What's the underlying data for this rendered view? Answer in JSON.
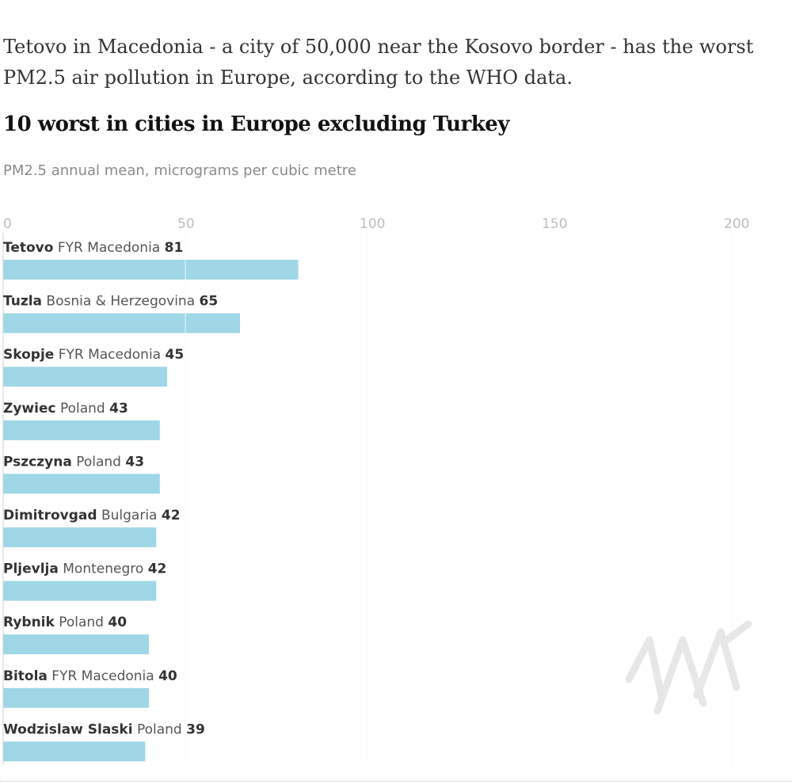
{
  "intro": "Tetovo in Macedonia - a city of 50,000 near the Kosovo border - has the worst PM2.5 air pollution in Europe, according to the WHO data.",
  "chart_data": {
    "type": "bar",
    "orientation": "horizontal",
    "title": "10 worst in cities in Europe excluding Turkey",
    "subtitle": "PM2.5 annual mean, micrograms per cubic metre",
    "xlim": [
      0,
      215
    ],
    "ticks": [
      0,
      50,
      100,
      150,
      200
    ],
    "grid": true,
    "bar_color": "#9fd7e6",
    "rows": [
      {
        "city": "Tetovo",
        "country": "FYR Macedonia",
        "value": 81
      },
      {
        "city": "Tuzla",
        "country": "Bosnia & Herzegovina",
        "value": 65
      },
      {
        "city": "Skopje",
        "country": "FYR Macedonia",
        "value": 45
      },
      {
        "city": "Zywiec",
        "country": "Poland",
        "value": 43
      },
      {
        "city": "Pszczyna",
        "country": "Poland",
        "value": 43
      },
      {
        "city": "Dimitrovgad",
        "country": "Bulgaria",
        "value": 42
      },
      {
        "city": "Pljevlja",
        "country": "Montenegro",
        "value": 42
      },
      {
        "city": "Rybnik",
        "country": "Poland",
        "value": 40
      },
      {
        "city": "Bitola",
        "country": "FYR Macedonia",
        "value": 40
      },
      {
        "city": "Wodzislaw Slaski",
        "country": "Poland",
        "value": 39
      }
    ]
  }
}
